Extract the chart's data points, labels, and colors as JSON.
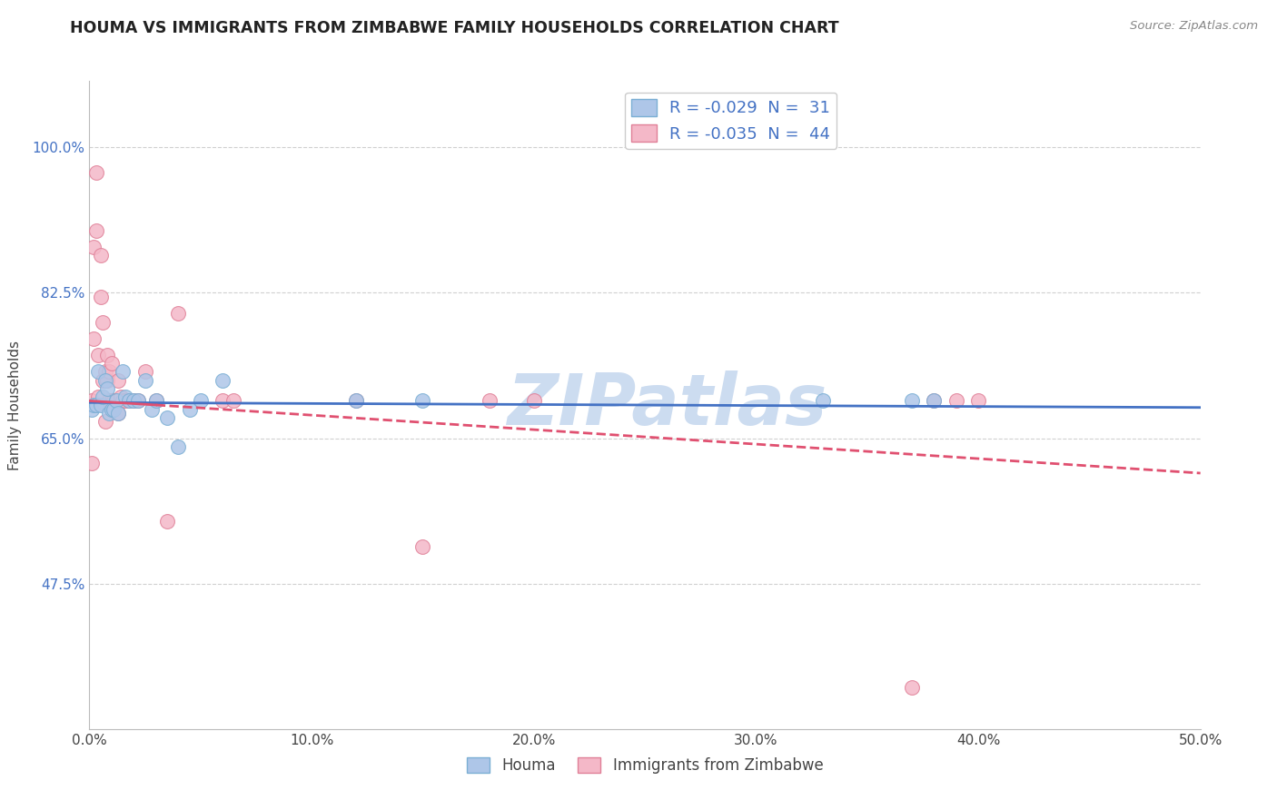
{
  "title": "HOUMA VS IMMIGRANTS FROM ZIMBABWE FAMILY HOUSEHOLDS CORRELATION CHART",
  "source_text": "Source: ZipAtlas.com",
  "ylabel": "Family Households",
  "xlim": [
    0.0,
    0.5
  ],
  "ylim": [
    0.3,
    1.08
  ],
  "xtick_labels": [
    "0.0%",
    "10.0%",
    "20.0%",
    "30.0%",
    "40.0%",
    "50.0%"
  ],
  "xtick_vals": [
    0.0,
    0.1,
    0.2,
    0.3,
    0.4,
    0.5
  ],
  "ytick_labels": [
    "47.5%",
    "65.0%",
    "82.5%",
    "100.0%"
  ],
  "ytick_vals": [
    0.475,
    0.65,
    0.825,
    1.0
  ],
  "grid_color": "#d0d0d0",
  "background_color": "#ffffff",
  "houma_color": "#aec6e8",
  "houma_edge_color": "#7bafd4",
  "zimbabwe_color": "#f4b8c8",
  "zimbabwe_edge_color": "#e08098",
  "houma_R": -0.029,
  "houma_N": 31,
  "zimbabwe_R": -0.035,
  "zimbabwe_N": 44,
  "trend_blue": "#4472c4",
  "trend_pink": "#e05070",
  "watermark": "ZIPatlas",
  "watermark_color": "#ccdcf0",
  "legend_label_houma": "Houma",
  "legend_label_zimbabwe": "Immigrants from Zimbabwe",
  "houma_x": [
    0.001,
    0.002,
    0.003,
    0.004,
    0.005,
    0.006,
    0.007,
    0.008,
    0.009,
    0.01,
    0.011,
    0.012,
    0.013,
    0.015,
    0.016,
    0.018,
    0.02,
    0.022,
    0.025,
    0.028,
    0.03,
    0.035,
    0.04,
    0.045,
    0.05,
    0.06,
    0.12,
    0.15,
    0.33,
    0.37,
    0.38
  ],
  "houma_y": [
    0.685,
    0.69,
    0.69,
    0.73,
    0.69,
    0.7,
    0.72,
    0.71,
    0.68,
    0.685,
    0.685,
    0.695,
    0.68,
    0.73,
    0.7,
    0.695,
    0.695,
    0.695,
    0.72,
    0.685,
    0.695,
    0.675,
    0.64,
    0.685,
    0.695,
    0.72,
    0.695,
    0.695,
    0.695,
    0.695,
    0.695
  ],
  "zimbabwe_x": [
    0.001,
    0.001,
    0.002,
    0.002,
    0.003,
    0.003,
    0.004,
    0.004,
    0.005,
    0.005,
    0.006,
    0.006,
    0.007,
    0.007,
    0.008,
    0.008,
    0.009,
    0.009,
    0.01,
    0.01,
    0.011,
    0.012,
    0.013,
    0.013,
    0.014,
    0.015,
    0.016,
    0.018,
    0.02,
    0.022,
    0.025,
    0.03,
    0.035,
    0.04,
    0.06,
    0.065,
    0.12,
    0.15,
    0.18,
    0.2,
    0.37,
    0.38,
    0.39,
    0.4
  ],
  "zimbabwe_y": [
    0.695,
    0.62,
    0.77,
    0.88,
    0.9,
    0.97,
    0.75,
    0.7,
    0.87,
    0.82,
    0.79,
    0.72,
    0.67,
    0.73,
    0.72,
    0.75,
    0.73,
    0.695,
    0.74,
    0.695,
    0.695,
    0.695,
    0.68,
    0.72,
    0.7,
    0.695,
    0.695,
    0.695,
    0.695,
    0.695,
    0.73,
    0.695,
    0.55,
    0.8,
    0.695,
    0.695,
    0.695,
    0.52,
    0.695,
    0.695,
    0.35,
    0.695,
    0.695,
    0.695
  ]
}
